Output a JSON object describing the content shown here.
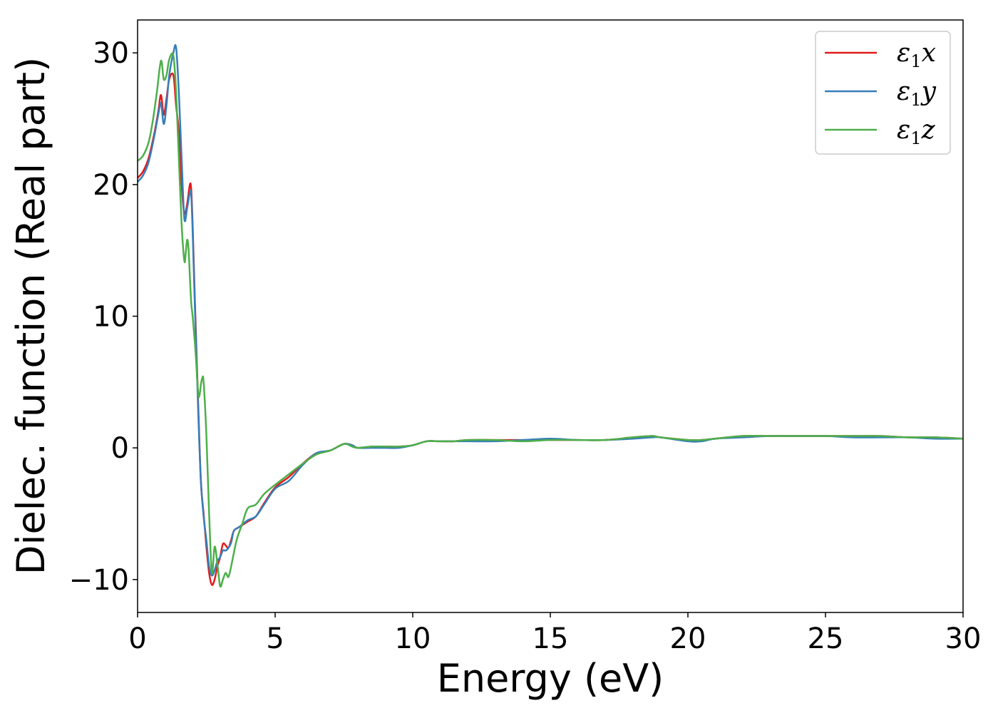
{
  "chart_data": {
    "type": "line",
    "xlabel": "Energy (eV)",
    "ylabel": "Dielec. function (Real part)",
    "xlim": [
      0,
      30
    ],
    "ylim": [
      -12.5,
      32.5
    ],
    "x_ticks": [
      0,
      5,
      10,
      15,
      20,
      25,
      30
    ],
    "x_tick_labels": [
      "0",
      "5",
      "10",
      "15",
      "20",
      "25",
      "30"
    ],
    "y_ticks": [
      -10,
      0,
      10,
      20,
      30
    ],
    "y_tick_labels": [
      "−10",
      "0",
      "10",
      "20",
      "30"
    ],
    "grid": false,
    "legend_position": "top-right",
    "series": [
      {
        "name": "ε₁x",
        "legend_main": "ε",
        "legend_sub": "1",
        "legend_tail": "x",
        "color": "#e41a1c",
        "x": [
          0,
          0.2,
          0.4,
          0.6,
          0.75,
          0.85,
          0.95,
          1.05,
          1.15,
          1.3,
          1.4,
          1.5,
          1.6,
          1.7,
          1.8,
          1.9,
          1.95,
          2.0,
          2.1,
          2.2,
          2.3,
          2.4,
          2.5,
          2.6,
          2.7,
          2.8,
          2.9,
          3.0,
          3.1,
          3.2,
          3.3,
          3.4,
          3.5,
          3.7,
          4.0,
          4.3,
          4.6,
          5.0,
          5.5,
          6.0,
          6.5,
          7.0,
          7.5,
          7.8,
          8.0,
          8.5,
          9,
          9.5,
          10,
          10.5,
          11,
          11.5,
          12,
          13,
          14,
          15,
          16,
          17,
          18,
          18.7,
          19,
          20,
          20.5,
          21,
          22,
          23,
          24,
          25,
          26,
          27,
          28,
          29,
          30
        ],
        "values": [
          20.5,
          21.0,
          22.0,
          23.8,
          25.5,
          26.8,
          25.3,
          26.5,
          28.0,
          28.3,
          26.0,
          24.0,
          20.0,
          17.8,
          18.5,
          20.0,
          19.6,
          17.0,
          10.0,
          3.5,
          -2.5,
          -5.0,
          -7.5,
          -9.5,
          -10.4,
          -10.0,
          -9.0,
          -8.3,
          -7.3,
          -7.4,
          -7.6,
          -7.0,
          -6.3,
          -6.0,
          -5.6,
          -5.2,
          -4.2,
          -3.0,
          -2.2,
          -1.2,
          -0.4,
          -0.2,
          0.3,
          0.2,
          0.0,
          0.1,
          0.1,
          0.1,
          0.2,
          0.5,
          0.5,
          0.5,
          0.6,
          0.6,
          0.6,
          0.6,
          0.6,
          0.6,
          0.8,
          0.9,
          0.8,
          0.6,
          0.6,
          0.7,
          0.9,
          0.9,
          0.9,
          0.9,
          0.9,
          0.9,
          0.8,
          0.8,
          0.7
        ]
      },
      {
        "name": "ε₁y",
        "legend_main": "ε",
        "legend_sub": "1",
        "legend_tail": "y",
        "color": "#377eb8",
        "x": [
          0,
          0.2,
          0.4,
          0.6,
          0.75,
          0.85,
          0.95,
          1.05,
          1.15,
          1.3,
          1.4,
          1.5,
          1.6,
          1.7,
          1.8,
          1.9,
          1.95,
          2.0,
          2.1,
          2.2,
          2.3,
          2.4,
          2.5,
          2.6,
          2.7,
          2.8,
          2.9,
          3.0,
          3.1,
          3.2,
          3.3,
          3.4,
          3.5,
          3.7,
          4.0,
          4.3,
          4.6,
          5.0,
          5.5,
          6.0,
          6.5,
          7.0,
          7.5,
          7.8,
          8.0,
          8.5,
          9,
          9.5,
          10,
          10.5,
          11,
          11.5,
          12,
          13,
          14,
          15,
          16,
          17,
          18,
          18.7,
          19,
          20,
          20.5,
          21,
          22,
          23,
          24,
          25,
          26,
          27,
          28,
          29,
          30
        ],
        "values": [
          20.2,
          20.7,
          21.7,
          23.6,
          25.3,
          26.2,
          24.6,
          26.0,
          28.3,
          30.0,
          30.4,
          27.0,
          22.0,
          17.4,
          18.2,
          19.4,
          19.2,
          16.5,
          9.5,
          3.0,
          -2.5,
          -5.2,
          -7.0,
          -9.0,
          -9.7,
          -9.3,
          -8.6,
          -8.3,
          -7.8,
          -7.8,
          -7.6,
          -7.2,
          -6.3,
          -6.0,
          -5.5,
          -5.2,
          -4.3,
          -3.1,
          -2.5,
          -1.3,
          -0.4,
          -0.2,
          0.3,
          0.2,
          0.0,
          0.0,
          0.0,
          0.0,
          0.2,
          0.5,
          0.5,
          0.5,
          0.5,
          0.5,
          0.6,
          0.7,
          0.6,
          0.6,
          0.7,
          0.8,
          0.8,
          0.5,
          0.5,
          0.7,
          0.8,
          0.9,
          0.9,
          0.9,
          0.8,
          0.8,
          0.8,
          0.7,
          0.7
        ]
      },
      {
        "name": "ε₁z",
        "legend_main": "ε",
        "legend_sub": "1",
        "legend_tail": "z",
        "color": "#4daf4a",
        "x": [
          0,
          0.2,
          0.4,
          0.55,
          0.7,
          0.85,
          0.95,
          1.05,
          1.15,
          1.3,
          1.4,
          1.5,
          1.6,
          1.7,
          1.75,
          1.8,
          1.85,
          1.9,
          1.95,
          2.0,
          2.1,
          2.2,
          2.25,
          2.3,
          2.35,
          2.4,
          2.5,
          2.6,
          2.7,
          2.8,
          2.9,
          3.0,
          3.1,
          3.2,
          3.3,
          3.4,
          3.6,
          3.8,
          4.0,
          4.3,
          4.6,
          5.0,
          5.5,
          6.0,
          6.5,
          7.0,
          7.5,
          7.8,
          8.0,
          8.5,
          9,
          9.5,
          10,
          10.5,
          11,
          11.5,
          12,
          13,
          14,
          15,
          16,
          17,
          18,
          18.7,
          19,
          20,
          20.5,
          21,
          22,
          23,
          24,
          25,
          26,
          27,
          28,
          29,
          30
        ],
        "values": [
          21.8,
          22.2,
          23.2,
          24.8,
          27.0,
          29.4,
          28.0,
          28.3,
          29.5,
          29.8,
          27.0,
          22.0,
          17.0,
          14.2,
          14.8,
          15.8,
          15.2,
          13.0,
          11.0,
          10.0,
          7.5,
          4.2,
          4.0,
          4.8,
          5.3,
          5.0,
          1.0,
          -5.0,
          -9.5,
          -7.5,
          -8.8,
          -10.5,
          -10.0,
          -9.5,
          -9.8,
          -9.0,
          -7.0,
          -5.8,
          -4.6,
          -4.3,
          -3.5,
          -2.8,
          -2.0,
          -1.2,
          -0.5,
          -0.2,
          0.3,
          0.1,
          0.0,
          0.1,
          0.1,
          0.1,
          0.2,
          0.5,
          0.5,
          0.5,
          0.6,
          0.6,
          0.5,
          0.6,
          0.6,
          0.6,
          0.8,
          0.9,
          0.8,
          0.6,
          0.6,
          0.7,
          0.9,
          0.9,
          0.9,
          0.9,
          0.9,
          0.9,
          0.8,
          0.8,
          0.7
        ]
      }
    ]
  }
}
